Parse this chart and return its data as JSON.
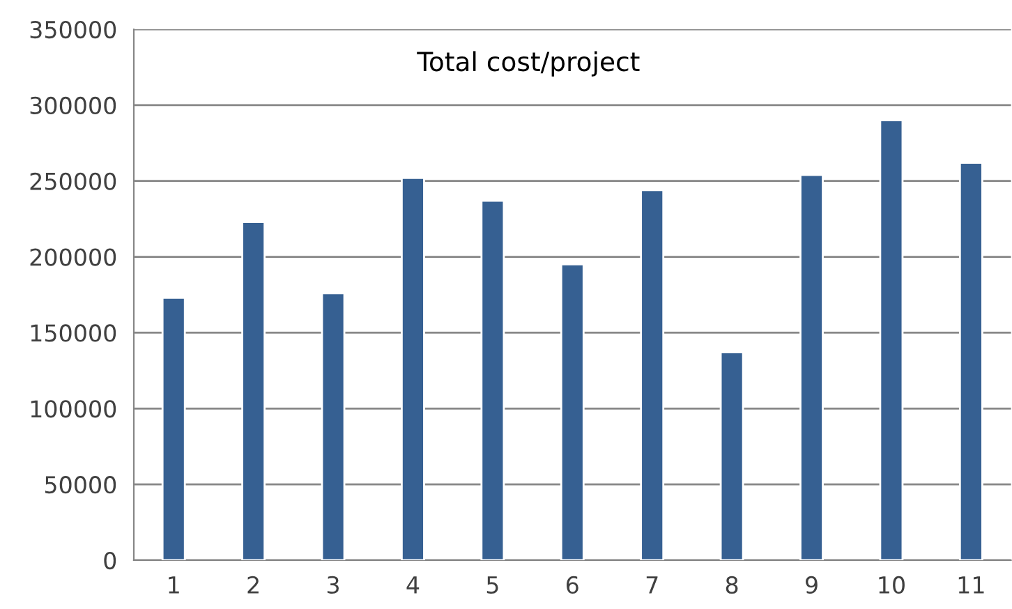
{
  "chart_data": {
    "type": "bar",
    "title": "Total cost/project",
    "categories": [
      "1",
      "2",
      "3",
      "4",
      "5",
      "6",
      "7",
      "8",
      "9",
      "10",
      "11"
    ],
    "values": [
      173000,
      223000,
      176000,
      252000,
      237000,
      195000,
      244000,
      137000,
      254000,
      290000,
      262000
    ],
    "color": "#366092",
    "ylim": [
      0,
      350000
    ],
    "yticks": [
      0,
      50000,
      100000,
      150000,
      200000,
      250000,
      300000,
      350000
    ],
    "grid": "y"
  }
}
